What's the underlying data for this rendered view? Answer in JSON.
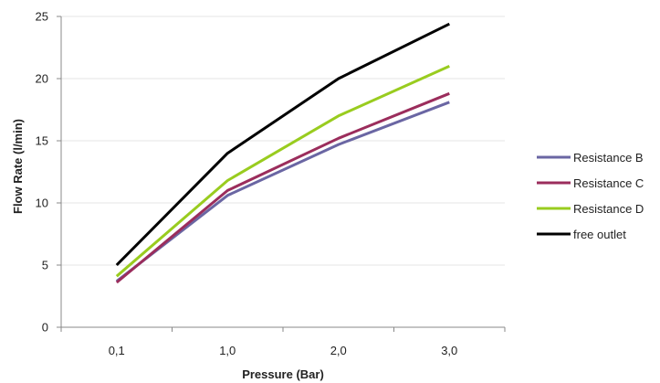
{
  "chart_data": {
    "type": "line",
    "xlabel": "Pressure (Bar)",
    "ylabel": "Flow Rate (l/min)",
    "categories": [
      "0,1",
      "1,0",
      "2,0",
      "3,0"
    ],
    "ylim": [
      0,
      25
    ],
    "yticks": [
      0,
      5,
      10,
      15,
      20,
      25
    ],
    "grid": "horizontal",
    "legend_position": "right",
    "series": [
      {
        "name": "Resistance B",
        "color": "#6A66A3",
        "values": [
          3.7,
          10.6,
          14.7,
          18.1
        ]
      },
      {
        "name": "Resistance C",
        "color": "#9B2D5C",
        "values": [
          3.6,
          11.0,
          15.2,
          18.8
        ]
      },
      {
        "name": "Resistance D",
        "color": "#99CC1F",
        "values": [
          4.1,
          11.8,
          17.0,
          21.0
        ]
      },
      {
        "name": "free outlet",
        "color": "#000000",
        "values": [
          5.0,
          14.0,
          20.0,
          24.4
        ]
      }
    ]
  }
}
